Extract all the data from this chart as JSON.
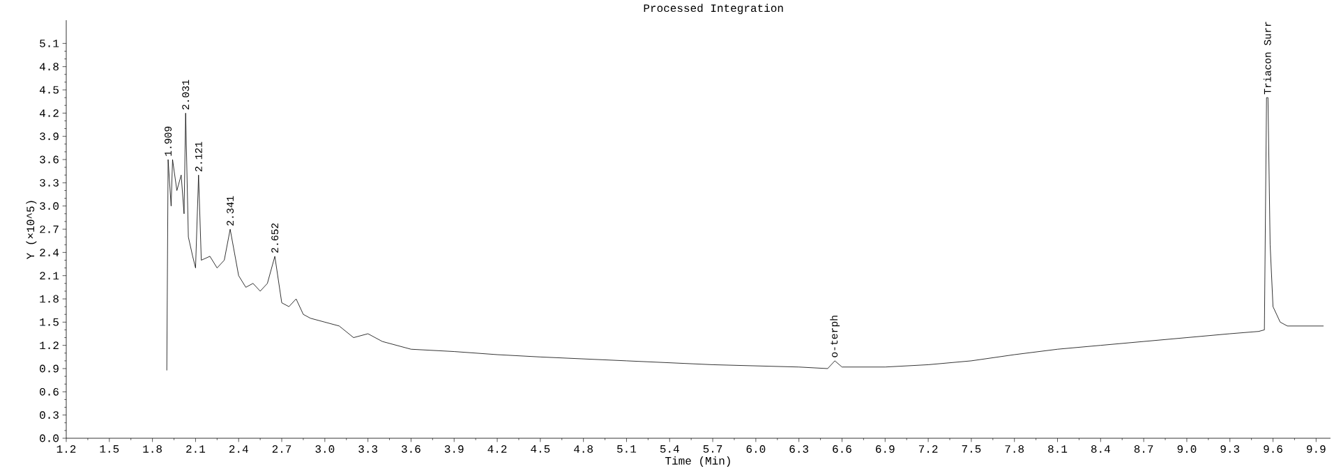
{
  "chart_data": {
    "type": "line",
    "title": "Processed Integration",
    "xlabel": "Time (Min)",
    "ylabel": "Y (×10^5)",
    "xlim": [
      1.2,
      10.0
    ],
    "ylim": [
      0,
      5.4
    ],
    "xticks": [
      {
        "value": 1.2,
        "label": "1.2"
      },
      {
        "value": 1.5,
        "label": "1.5"
      },
      {
        "value": 1.8,
        "label": "1.8"
      },
      {
        "value": 2.1,
        "label": "2.1"
      },
      {
        "value": 2.4,
        "label": "2.4"
      },
      {
        "value": 2.7,
        "label": "2.7"
      },
      {
        "value": 3.0,
        "label": "3.0"
      },
      {
        "value": 3.3,
        "label": "3.3"
      },
      {
        "value": 3.6,
        "label": "3.6"
      },
      {
        "value": 3.9,
        "label": "3.9"
      },
      {
        "value": 4.2,
        "label": "4.2"
      },
      {
        "value": 4.5,
        "label": "4.5"
      },
      {
        "value": 4.8,
        "label": "4.8"
      },
      {
        "value": 5.1,
        "label": "5.1"
      },
      {
        "value": 5.4,
        "label": "5.4"
      },
      {
        "value": 5.7,
        "label": "5.7"
      },
      {
        "value": 6.0,
        "label": "6.0"
      },
      {
        "value": 6.3,
        "label": "6.3"
      },
      {
        "value": 6.6,
        "label": "6.6"
      },
      {
        "value": 6.9,
        "label": "6.9"
      },
      {
        "value": 7.2,
        "label": "7.2"
      },
      {
        "value": 7.5,
        "label": "7.5"
      },
      {
        "value": 7.8,
        "label": "7.8"
      },
      {
        "value": 8.1,
        "label": "8.1"
      },
      {
        "value": 8.4,
        "label": "8.4"
      },
      {
        "value": 8.7,
        "label": "8.7"
      },
      {
        "value": 9.0,
        "label": "9.0"
      },
      {
        "value": 9.3,
        "label": "9.3"
      },
      {
        "value": 9.6,
        "label": "9.6"
      },
      {
        "value": 9.9,
        "label": "9.9"
      }
    ],
    "yticks": [
      {
        "value": 0,
        "label": "0.0"
      },
      {
        "value": 0.3,
        "label": "0.3"
      },
      {
        "value": 0.6,
        "label": "0.6"
      },
      {
        "value": 0.9,
        "label": "0.9"
      },
      {
        "value": 1.2,
        "label": "1.2"
      },
      {
        "value": 1.5,
        "label": "1.5"
      },
      {
        "value": 1.8,
        "label": "1.8"
      },
      {
        "value": 2.1,
        "label": "2.1"
      },
      {
        "value": 2.4,
        "label": "2.4"
      },
      {
        "value": 2.7,
        "label": "2.7"
      },
      {
        "value": 3.0,
        "label": "3.0"
      },
      {
        "value": 3.3,
        "label": "3.3"
      },
      {
        "value": 3.6,
        "label": "3.6"
      },
      {
        "value": 3.9,
        "label": "3.9"
      },
      {
        "value": 4.2,
        "label": "4.2"
      },
      {
        "value": 4.5,
        "label": "4.5"
      },
      {
        "value": 4.8,
        "label": "4.8"
      },
      {
        "value": 5.1,
        "label": "5.1"
      }
    ],
    "color": "#000000",
    "x": [
      1.9,
      1.909,
      1.93,
      1.94,
      1.97,
      2.0,
      2.02,
      2.031,
      2.05,
      2.08,
      2.1,
      2.121,
      2.14,
      2.2,
      2.25,
      2.3,
      2.341,
      2.4,
      2.45,
      2.5,
      2.55,
      2.6,
      2.652,
      2.7,
      2.75,
      2.8,
      2.85,
      2.9,
      3.0,
      3.1,
      3.2,
      3.3,
      3.4,
      3.6,
      3.9,
      4.2,
      4.5,
      5.1,
      5.7,
      6.3,
      6.5,
      6.55,
      6.6,
      6.9,
      7.2,
      7.5,
      7.8,
      8.1,
      8.4,
      8.7,
      9.0,
      9.3,
      9.5,
      9.54,
      9.555,
      9.565,
      9.58,
      9.6,
      9.65,
      9.7,
      9.95
    ],
    "values": [
      0.88,
      3.6,
      3.0,
      3.6,
      3.2,
      3.4,
      2.9,
      4.2,
      2.6,
      2.35,
      2.2,
      3.4,
      2.3,
      2.35,
      2.2,
      2.3,
      2.7,
      2.1,
      1.95,
      2.0,
      1.9,
      2.0,
      2.35,
      1.75,
      1.7,
      1.8,
      1.6,
      1.55,
      1.5,
      1.45,
      1.3,
      1.35,
      1.25,
      1.15,
      1.12,
      1.08,
      1.05,
      1.0,
      0.95,
      0.92,
      0.9,
      1.0,
      0.92,
      0.92,
      0.95,
      1.0,
      1.08,
      1.15,
      1.2,
      1.25,
      1.3,
      1.35,
      1.38,
      1.4,
      4.4,
      4.4,
      2.5,
      1.7,
      1.5,
      1.45,
      1.45
    ],
    "annotations": [
      {
        "text": "1.909",
        "x": 1.909,
        "y": 3.6
      },
      {
        "text": "2.031",
        "x": 2.031,
        "y": 4.2
      },
      {
        "text": "2.121",
        "x": 2.121,
        "y": 3.4
      },
      {
        "text": "2.341",
        "x": 2.341,
        "y": 2.7
      },
      {
        "text": "2.652",
        "x": 2.652,
        "y": 2.35
      },
      {
        "text": "o-terph",
        "x": 6.55,
        "y": 1.0
      },
      {
        "text": "Triacon Surr",
        "x": 9.56,
        "y": 4.4
      }
    ]
  }
}
